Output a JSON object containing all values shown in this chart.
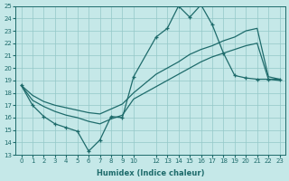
{
  "xlabel": "Humidex (Indice chaleur)",
  "ylabel": "",
  "background_color": "#c5e8e8",
  "grid_color": "#94c8c8",
  "line_color": "#1e6b6b",
  "ylim": [
    13,
    25
  ],
  "xlim": [
    -0.5,
    23.5
  ],
  "yticks": [
    13,
    14,
    15,
    16,
    17,
    18,
    19,
    20,
    21,
    22,
    23,
    24,
    25
  ],
  "xtick_positions": [
    0,
    1,
    2,
    3,
    4,
    5,
    6,
    7,
    8,
    9,
    10,
    12,
    13,
    14,
    15,
    16,
    17,
    18,
    19,
    20,
    21,
    22,
    23
  ],
  "xtick_labels": [
    "0",
    "1",
    "2",
    "3",
    "4",
    "5",
    "6",
    "7",
    "8",
    "9",
    "10",
    "12",
    "13",
    "14",
    "15",
    "16",
    "17",
    "18",
    "19",
    "20",
    "21",
    "22",
    "23"
  ],
  "line_marked_x": [
    0,
    1,
    2,
    3,
    4,
    5,
    6,
    7,
    8,
    9,
    10,
    12,
    13,
    14,
    15,
    16,
    17,
    18,
    19,
    20,
    21,
    22,
    23
  ],
  "line_marked_y": [
    18.6,
    17.0,
    16.1,
    15.5,
    15.2,
    14.9,
    13.3,
    14.2,
    16.1,
    16.0,
    19.3,
    22.5,
    23.2,
    25.0,
    24.1,
    25.1,
    23.5,
    21.2,
    19.4,
    19.2,
    19.1,
    19.1,
    19.1
  ],
  "line_upper_x": [
    0,
    1,
    2,
    3,
    4,
    5,
    6,
    7,
    8,
    9,
    10,
    12,
    13,
    14,
    15,
    16,
    17,
    18,
    19,
    20,
    21,
    22,
    23
  ],
  "line_upper_y": [
    18.6,
    17.8,
    17.3,
    17.0,
    16.8,
    16.6,
    16.4,
    16.3,
    16.7,
    17.1,
    18.0,
    19.5,
    20.0,
    20.5,
    21.1,
    21.5,
    21.8,
    22.2,
    22.5,
    23.0,
    23.2,
    19.3,
    19.1
  ],
  "line_lower_x": [
    0,
    1,
    2,
    3,
    4,
    5,
    6,
    7,
    8,
    9,
    10,
    12,
    13,
    14,
    15,
    16,
    17,
    18,
    19,
    20,
    21,
    22,
    23
  ],
  "line_lower_y": [
    18.6,
    17.4,
    16.9,
    16.5,
    16.2,
    16.0,
    15.7,
    15.5,
    15.9,
    16.2,
    17.5,
    18.5,
    19.0,
    19.5,
    20.0,
    20.5,
    20.9,
    21.2,
    21.5,
    21.8,
    22.0,
    19.1,
    19.0
  ]
}
